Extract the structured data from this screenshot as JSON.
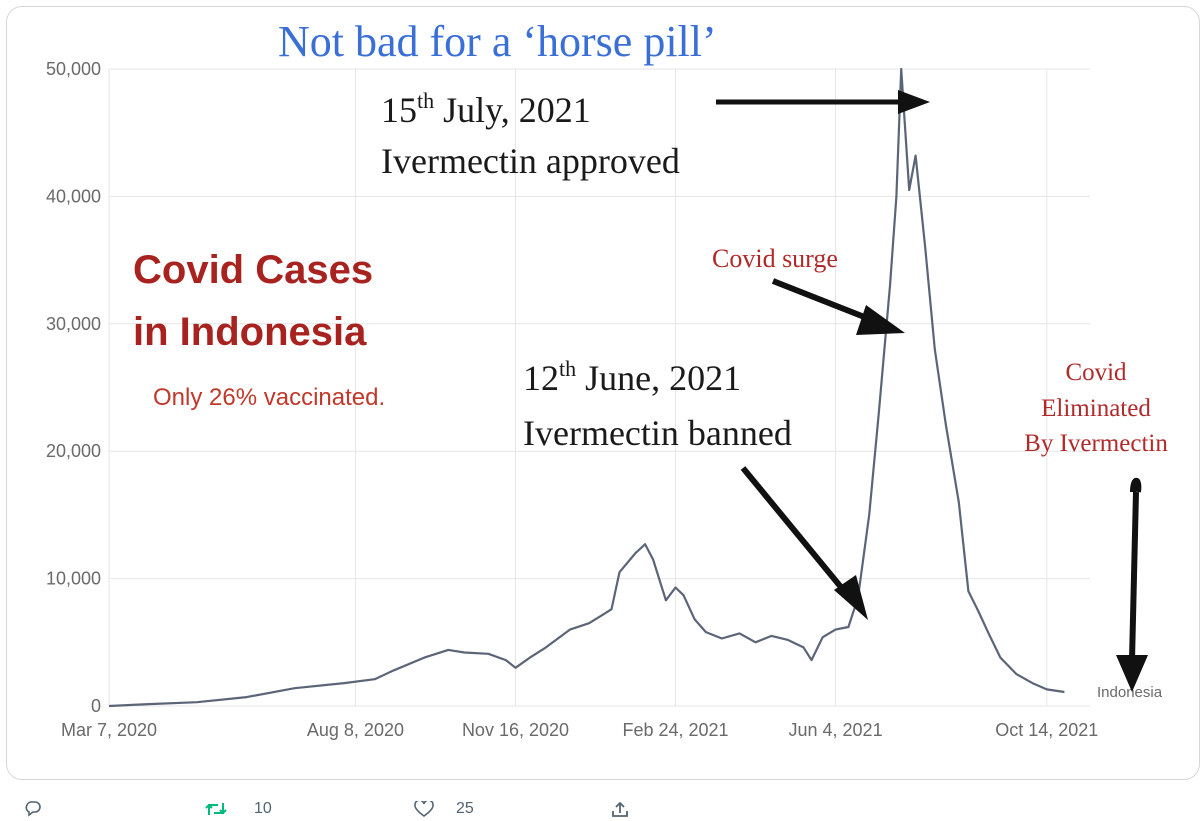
{
  "chart_data": {
    "type": "line",
    "title": "Not bad for a ‘horse pill’",
    "subtitle_line1": "Covid Cases",
    "subtitle_line2": "in Indonesia",
    "note": "Only 26% vaccinated.",
    "xlabel": "",
    "ylabel": "",
    "y_ticks": [
      "0",
      "10,000",
      "20,000",
      "30,000",
      "40,000",
      "50,000"
    ],
    "y_tick_values": [
      0,
      10000,
      20000,
      30000,
      40000,
      50000
    ],
    "ylim": [
      0,
      50000
    ],
    "x_ticks": [
      "Mar 7, 2020",
      "Aug 8, 2020",
      "Nov 16, 2020",
      "Feb 24, 2021",
      "Jun 4, 2021",
      "Oct 14, 2021"
    ],
    "x_tick_dates": [
      "2020-03-07",
      "2020-08-08",
      "2020-11-16",
      "2021-02-24",
      "2021-06-04",
      "2021-10-14"
    ],
    "xlim": [
      "2020-03-07",
      "2021-11-10"
    ],
    "grid": true,
    "series": [
      {
        "name": "Indonesia",
        "color": "#5c6478",
        "points": [
          [
            "2020-03-07",
            0
          ],
          [
            "2020-04-01",
            150
          ],
          [
            "2020-05-01",
            300
          ],
          [
            "2020-06-01",
            700
          ],
          [
            "2020-07-01",
            1400
          ],
          [
            "2020-08-01",
            1800
          ],
          [
            "2020-08-20",
            2100
          ],
          [
            "2020-09-01",
            2800
          ],
          [
            "2020-09-20",
            3800
          ],
          [
            "2020-10-05",
            4400
          ],
          [
            "2020-10-15",
            4200
          ],
          [
            "2020-10-30",
            4100
          ],
          [
            "2020-11-10",
            3600
          ],
          [
            "2020-11-16",
            3000
          ],
          [
            "2020-11-25",
            3800
          ],
          [
            "2020-12-05",
            4600
          ],
          [
            "2020-12-20",
            6000
          ],
          [
            "2021-01-01",
            6500
          ],
          [
            "2021-01-10",
            7200
          ],
          [
            "2021-01-15",
            7600
          ],
          [
            "2021-01-20",
            10500
          ],
          [
            "2021-01-30",
            12000
          ],
          [
            "2021-02-05",
            12700
          ],
          [
            "2021-02-10",
            11500
          ],
          [
            "2021-02-18",
            8300
          ],
          [
            "2021-02-24",
            9300
          ],
          [
            "2021-03-01",
            8700
          ],
          [
            "2021-03-08",
            6800
          ],
          [
            "2021-03-15",
            5800
          ],
          [
            "2021-03-25",
            5300
          ],
          [
            "2021-04-05",
            5700
          ],
          [
            "2021-04-15",
            5000
          ],
          [
            "2021-04-25",
            5500
          ],
          [
            "2021-05-05",
            5200
          ],
          [
            "2021-05-15",
            4600
          ],
          [
            "2021-05-20",
            3600
          ],
          [
            "2021-05-27",
            5400
          ],
          [
            "2021-06-04",
            6000
          ],
          [
            "2021-06-12",
            6200
          ],
          [
            "2021-06-18",
            8500
          ],
          [
            "2021-06-25",
            15000
          ],
          [
            "2021-07-01",
            23000
          ],
          [
            "2021-07-08",
            33000
          ],
          [
            "2021-07-12",
            40000
          ],
          [
            "2021-07-15",
            50000
          ],
          [
            "2021-07-20",
            40500
          ],
          [
            "2021-07-24",
            43200
          ],
          [
            "2021-07-30",
            36000
          ],
          [
            "2021-08-05",
            28000
          ],
          [
            "2021-08-12",
            22000
          ],
          [
            "2021-08-20",
            16000
          ],
          [
            "2021-08-26",
            9000
          ],
          [
            "2021-09-01",
            7500
          ],
          [
            "2021-09-08",
            5600
          ],
          [
            "2021-09-15",
            3800
          ],
          [
            "2021-09-25",
            2500
          ],
          [
            "2021-10-05",
            1800
          ],
          [
            "2021-10-14",
            1300
          ],
          [
            "2021-10-25",
            1100
          ]
        ]
      }
    ],
    "annotations": [
      {
        "line1_main": "15",
        "line1_sup": "th",
        "line1_rest": " July, 2021",
        "line2": "Ivermectin approved"
      },
      {
        "line1_main": "12",
        "line1_sup": "th",
        "line1_rest": " June, 2021",
        "line2": "Ivermectin banned"
      },
      {
        "text": "Covid surge"
      },
      {
        "line1": "Covid",
        "line2": "Eliminated",
        "line3": "By Ivermectin"
      }
    ],
    "series_label": "Indonesia",
    "colors": {
      "title": "#3a6fd8",
      "heading": "#a8231f",
      "note": "#c0392b",
      "annotation_red": "#b02a2a",
      "axis_text": "#6a6a6a",
      "grid": "#e6e6e6",
      "line": "#5c6478"
    }
  },
  "toolbar": {
    "reply_icon": "reply-icon",
    "retweet_icon": "retweet-icon",
    "retweet_count": "10",
    "like_icon": "heart-icon",
    "like_count": "25",
    "share_icon": "share-icon"
  }
}
